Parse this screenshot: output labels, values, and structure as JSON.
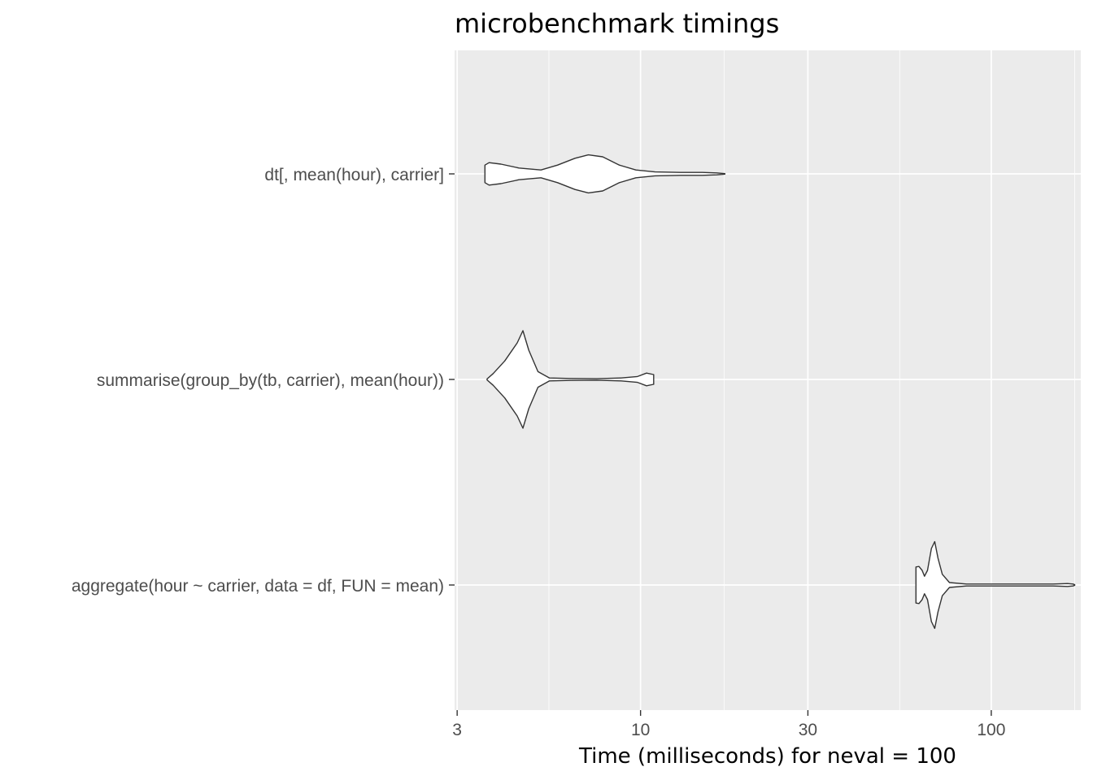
{
  "chart_data": {
    "type": "violin",
    "title": "microbenchmark timings",
    "xlabel": "Time (milliseconds) for neval = 100",
    "ylabel": "",
    "x_scale": "log10",
    "xlim": [
      2.95,
      180
    ],
    "x_ticks": [
      3,
      10,
      30,
      100
    ],
    "x_tick_labels": [
      "3",
      "10",
      "30",
      "100"
    ],
    "x_minor_ticks": [
      5.48,
      17.3,
      54.8,
      173
    ],
    "grid": true,
    "categories": [
      "dt[, mean(hour), carrier]",
      "summarise(group_by(tb, carrier), mean(hour))",
      "aggregate(hour ~ carrier, data = df, FUN = mean)"
    ],
    "series": [
      {
        "category": "dt[, mean(hour), carrier]",
        "min": 3.6,
        "max": 17.4,
        "density_profile": [
          [
            3.6,
            0.18
          ],
          [
            3.7,
            0.23
          ],
          [
            4.0,
            0.2
          ],
          [
            4.5,
            0.12
          ],
          [
            5.2,
            0.08
          ],
          [
            5.8,
            0.18
          ],
          [
            6.5,
            0.32
          ],
          [
            7.1,
            0.39
          ],
          [
            7.8,
            0.35
          ],
          [
            8.7,
            0.18
          ],
          [
            9.7,
            0.08
          ],
          [
            11.0,
            0.04
          ],
          [
            13.0,
            0.03
          ],
          [
            15.0,
            0.03
          ],
          [
            16.5,
            0.02
          ],
          [
            17.4,
            0.005
          ]
        ]
      },
      {
        "category": "summarise(group_by(tb, carrier), mean(hour))",
        "min": 3.65,
        "max": 10.9,
        "density_profile": [
          [
            3.65,
            0.01
          ],
          [
            3.8,
            0.12
          ],
          [
            4.1,
            0.38
          ],
          [
            4.45,
            0.75
          ],
          [
            4.62,
            1.0
          ],
          [
            4.8,
            0.6
          ],
          [
            5.1,
            0.16
          ],
          [
            5.5,
            0.03
          ],
          [
            6.3,
            0.02
          ],
          [
            7.5,
            0.015
          ],
          [
            8.8,
            0.03
          ],
          [
            9.8,
            0.06
          ],
          [
            10.4,
            0.13
          ],
          [
            10.9,
            0.1
          ]
        ]
      },
      {
        "category": "aggregate(hour ~ carrier, data = df, FUN = mean)",
        "min": 61,
        "max": 173,
        "density_profile": [
          [
            61,
            0.37
          ],
          [
            62.2,
            0.38
          ],
          [
            63.5,
            0.3
          ],
          [
            64.5,
            0.18
          ],
          [
            65.8,
            0.3
          ],
          [
            67.5,
            0.75
          ],
          [
            69,
            0.89
          ],
          [
            70.5,
            0.55
          ],
          [
            72.5,
            0.22
          ],
          [
            76,
            0.05
          ],
          [
            85,
            0.02
          ],
          [
            110,
            0.02
          ],
          [
            150,
            0.02
          ],
          [
            165,
            0.03
          ],
          [
            171,
            0.02
          ],
          [
            173,
            0.005
          ]
        ]
      }
    ]
  }
}
